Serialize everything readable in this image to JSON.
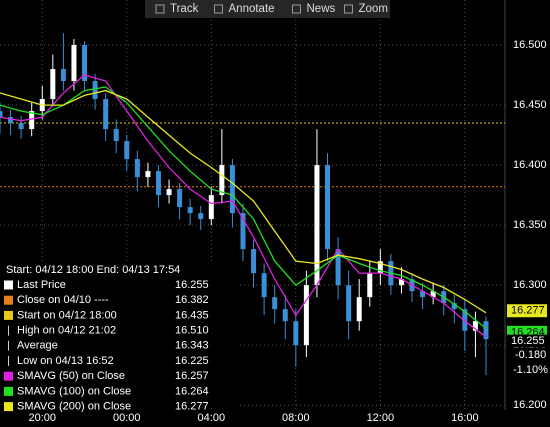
{
  "toolbar": [
    "Track",
    "Annotate",
    "News",
    "Zoom"
  ],
  "chart_data": {
    "type": "candlestick",
    "x": [
      0,
      0.5,
      1,
      1.5,
      2,
      2.5,
      3,
      3.5,
      4,
      4.5,
      5,
      5.5,
      6,
      6.5,
      7,
      7.5,
      8,
      8.5,
      9,
      9.5,
      10,
      10.5,
      11,
      11.5,
      12,
      12.5,
      13,
      13.5,
      14,
      14.5,
      15,
      15.5,
      16,
      16.5,
      17,
      17.5,
      18,
      18.5,
      19,
      19.5,
      20,
      20.5,
      21,
      21.5,
      22,
      22.5,
      23
    ],
    "open": [
      16.445,
      16.44,
      16.435,
      16.43,
      16.445,
      16.455,
      16.48,
      16.47,
      16.5,
      16.47,
      16.455,
      16.43,
      16.42,
      16.405,
      16.39,
      16.395,
      16.375,
      16.38,
      16.365,
      16.36,
      16.355,
      16.375,
      16.4,
      16.36,
      16.33,
      16.31,
      16.29,
      16.28,
      16.27,
      16.25,
      16.3,
      16.4,
      16.33,
      16.3,
      16.27,
      16.29,
      16.31,
      16.32,
      16.3,
      16.305,
      16.295,
      16.29,
      16.295,
      16.285,
      16.28,
      16.262,
      16.27
    ],
    "high": [
      16.452,
      16.446,
      16.441,
      16.452,
      16.466,
      16.492,
      16.51,
      16.505,
      16.503,
      16.476,
      16.46,
      16.438,
      16.425,
      16.412,
      16.402,
      16.4,
      16.388,
      16.385,
      16.372,
      16.366,
      16.382,
      16.43,
      16.405,
      16.368,
      16.338,
      16.318,
      16.3,
      16.292,
      16.28,
      16.312,
      16.43,
      16.41,
      16.34,
      16.312,
      16.305,
      16.32,
      16.33,
      16.326,
      16.315,
      16.31,
      16.302,
      16.302,
      16.3,
      16.292,
      16.288,
      16.278,
      16.274
    ],
    "low": [
      16.426,
      16.425,
      16.422,
      16.424,
      16.438,
      16.45,
      16.462,
      16.462,
      16.462,
      16.446,
      16.42,
      16.41,
      16.395,
      16.378,
      16.382,
      16.365,
      16.368,
      16.355,
      16.35,
      16.346,
      16.35,
      16.368,
      16.348,
      16.32,
      16.298,
      16.275,
      16.268,
      16.255,
      16.232,
      16.24,
      16.29,
      16.32,
      16.288,
      16.255,
      16.262,
      16.282,
      16.3,
      16.292,
      16.293,
      16.286,
      16.28,
      16.284,
      16.275,
      16.268,
      16.245,
      16.24,
      16.225
    ],
    "close": [
      16.44,
      16.435,
      16.43,
      16.445,
      16.455,
      16.48,
      16.47,
      16.5,
      16.47,
      16.455,
      16.43,
      16.42,
      16.405,
      16.39,
      16.395,
      16.375,
      16.38,
      16.365,
      16.36,
      16.355,
      16.375,
      16.4,
      16.36,
      16.33,
      16.31,
      16.29,
      16.28,
      16.27,
      16.25,
      16.3,
      16.4,
      16.33,
      16.3,
      16.27,
      16.29,
      16.31,
      16.32,
      16.3,
      16.305,
      16.295,
      16.29,
      16.295,
      16.285,
      16.28,
      16.262,
      16.27,
      16.255
    ],
    "up_color": "#ffffff",
    "down_color": "#3a8fd6",
    "series": [
      {
        "name": "SMAVG (50) on Close",
        "color": "#e020e0",
        "x": [
          0,
          1,
          2,
          3,
          4,
          5,
          6,
          7,
          8,
          9,
          10,
          11,
          12,
          13,
          14,
          15,
          16,
          17,
          18,
          19,
          20,
          21,
          22,
          23
        ],
        "values": [
          16.44,
          16.437,
          16.44,
          16.46,
          16.475,
          16.47,
          16.445,
          16.42,
          16.398,
          16.38,
          16.368,
          16.37,
          16.34,
          16.305,
          16.275,
          16.3,
          16.33,
          16.31,
          16.31,
          16.305,
          16.295,
          16.285,
          16.27,
          16.257
        ]
      },
      {
        "name": "SMAVG (100) on Close",
        "color": "#20e020",
        "x": [
          0,
          1,
          2,
          3,
          4,
          5,
          6,
          7,
          8,
          9,
          10,
          11,
          12,
          13,
          14,
          15,
          16,
          17,
          18,
          19,
          20,
          21,
          22,
          23
        ],
        "values": [
          16.45,
          16.445,
          16.442,
          16.45,
          16.462,
          16.465,
          16.452,
          16.432,
          16.412,
          16.395,
          16.38,
          16.375,
          16.355,
          16.32,
          16.3,
          16.312,
          16.325,
          16.318,
          16.312,
          16.308,
          16.3,
          16.29,
          16.278,
          16.264
        ]
      },
      {
        "name": "SMAVG (200) on Close",
        "color": "#e8e820",
        "x": [
          0,
          1,
          2,
          3,
          4,
          5,
          6,
          7,
          8,
          9,
          10,
          11,
          12,
          13,
          14,
          15,
          16,
          17,
          18,
          19,
          20,
          21,
          22,
          23
        ],
        "values": [
          16.46,
          16.455,
          16.45,
          16.45,
          16.458,
          16.462,
          16.455,
          16.44,
          16.425,
          16.41,
          16.398,
          16.385,
          16.37,
          16.345,
          16.32,
          16.318,
          16.325,
          16.322,
          16.318,
          16.313,
          16.305,
          16.298,
          16.288,
          16.277
        ]
      }
    ],
    "xlim": [
      0,
      23.9
    ],
    "xticks": [
      {
        "value": 2,
        "label": "20:00"
      },
      {
        "value": 6,
        "label": "00:00"
      },
      {
        "value": 10,
        "label": "04:00"
      },
      {
        "value": 14,
        "label": "08:00"
      },
      {
        "value": 18,
        "label": "12:00"
      },
      {
        "value": 22,
        "label": "16:00"
      }
    ],
    "ylim": [
      16.196,
      16.5375
    ],
    "yticks": [
      {
        "value": 16.2,
        "label": "16.200"
      },
      {
        "value": 16.25,
        "label": "16.250"
      },
      {
        "value": 16.3,
        "label": "16.300"
      },
      {
        "value": 16.35,
        "label": "16.350"
      },
      {
        "value": 16.4,
        "label": "16.400"
      },
      {
        "value": 16.45,
        "label": "16.450"
      },
      {
        "value": 16.5,
        "label": "16.500"
      }
    ],
    "grid": true,
    "legend_header": "Start: 04/12 18:00 End: 04/13 17:54",
    "legend": [
      {
        "label": "Last Price",
        "value": 16.255,
        "color": "#ffffff"
      },
      {
        "label": "Close on 04/10 ----",
        "value": 16.382,
        "color": "#e8801a",
        "line": true
      },
      {
        "label": "Start on 04/12 18:00",
        "value": 16.435,
        "color": "#e8c81a",
        "line": true
      },
      {
        "label": "High on 04/12 21:02",
        "value": {
          "value": 16.51,
          "label": "16.510"
        }
      },
      {
        "label": "Average",
        "value": 16.343
      },
      {
        "label": "Low on 04/13 16:52",
        "value": 16.225
      },
      {
        "label": "SMAVG (50) on Close",
        "value": 16.257,
        "color": "#e020e0"
      },
      {
        "label": "SMAVG (100) on Close",
        "value": 16.264,
        "color": "#20e020"
      },
      {
        "label": "SMAVG (200) on Close",
        "value": 16.277,
        "color": "#e8e820"
      }
    ],
    "change": {
      "value": -0.18,
      "label": "-0.180"
    },
    "change_pct": {
      "value": -1.1,
      "label": "-1.10%"
    }
  }
}
